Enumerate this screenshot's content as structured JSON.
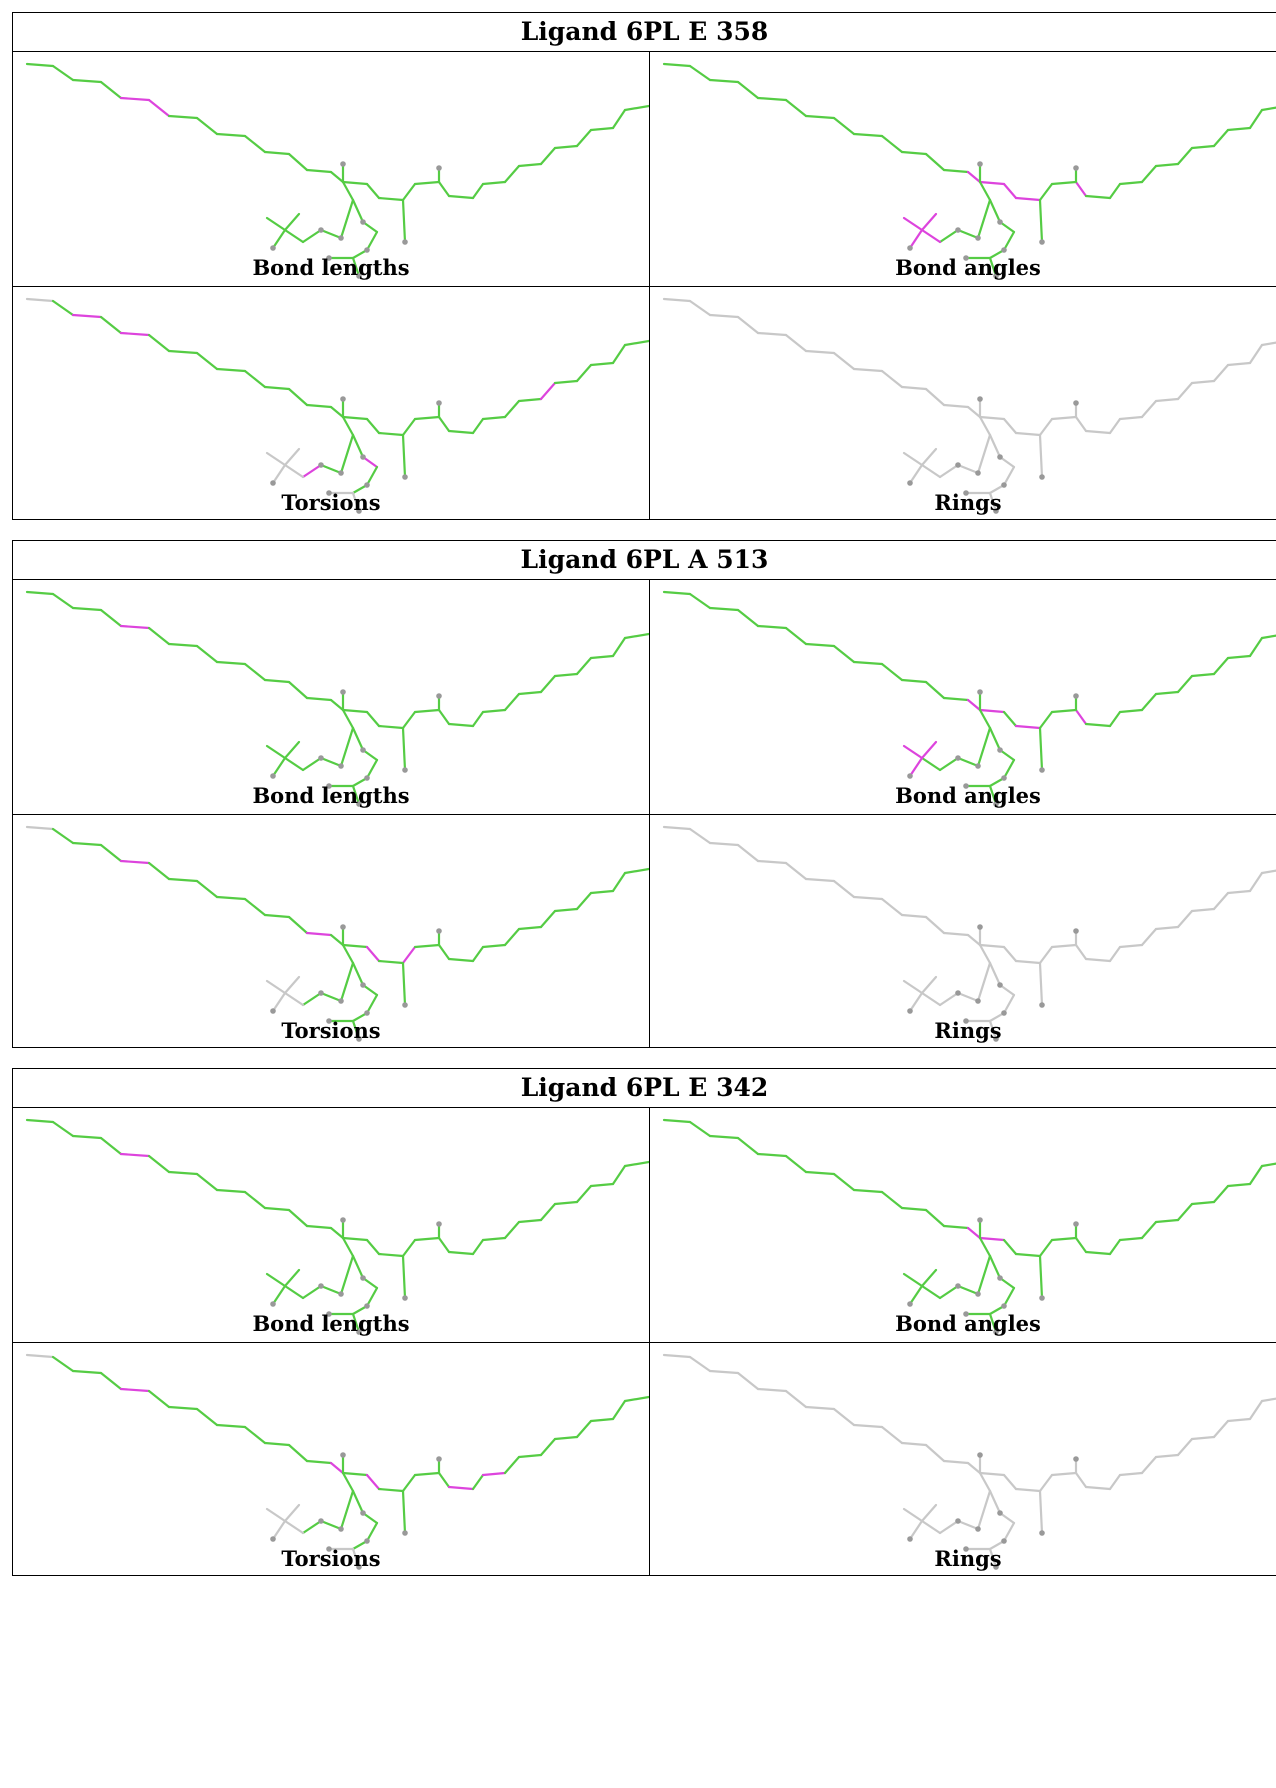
{
  "colors": {
    "ok": "#55cc44",
    "outlier": "#dd44dd",
    "neutral": "#c8c8c8",
    "atom": "#999999"
  },
  "ligands": [
    {
      "title": "Ligand 6PL E 358",
      "panels": [
        {
          "label": "Bond lengths",
          "mode": "color",
          "pink": [
            [
              4,
              5
            ],
            [
              5,
              6
            ]
          ],
          "gray": []
        },
        {
          "label": "Bond angles",
          "mode": "color",
          "pink": [
            [
              13,
              14
            ],
            [
              14,
              15
            ],
            [
              16,
              17
            ],
            [
              15,
              16
            ],
            [
              19,
              20
            ],
            [
              40,
              41
            ],
            [
              40,
              42
            ],
            [
              40,
              43
            ],
            [
              39,
              40
            ]
          ],
          "gray": []
        },
        {
          "label": "Torsions",
          "mode": "color",
          "pink": [
            [
              2,
              3
            ],
            [
              4,
              5
            ],
            [
              25,
              26
            ],
            [
              39,
              38
            ],
            [
              33,
              34
            ]
          ],
          "gray": [
            [
              0,
              1
            ],
            [
              40,
              41
            ],
            [
              40,
              42
            ],
            [
              40,
              43
            ],
            [
              39,
              40
            ],
            [
              36,
              44
            ],
            [
              36,
              45
            ]
          ]
        },
        {
          "label": "Rings",
          "mode": "gray",
          "pink": [],
          "gray": []
        }
      ]
    },
    {
      "title": "Ligand 6PL A 513",
      "panels": [
        {
          "label": "Bond lengths",
          "mode": "color",
          "pink": [
            [
              4,
              5
            ]
          ],
          "gray": []
        },
        {
          "label": "Bond angles",
          "mode": "color",
          "pink": [
            [
              13,
              14
            ],
            [
              14,
              15
            ],
            [
              16,
              17
            ],
            [
              19,
              20
            ],
            [
              40,
              41
            ],
            [
              40,
              42
            ],
            [
              40,
              43
            ]
          ],
          "gray": []
        },
        {
          "label": "Torsions",
          "mode": "color",
          "pink": [
            [
              4,
              5
            ],
            [
              12,
              13
            ],
            [
              15,
              16
            ],
            [
              17,
              18
            ],
            [
              37,
              36
            ]
          ],
          "gray": [
            [
              0,
              1
            ],
            [
              40,
              41
            ],
            [
              40,
              42
            ],
            [
              40,
              43
            ],
            [
              39,
              40
            ]
          ]
        },
        {
          "label": "Rings",
          "mode": "gray",
          "pink": [],
          "gray": []
        }
      ]
    },
    {
      "title": "Ligand 6PL E 342",
      "panels": [
        {
          "label": "Bond lengths",
          "mode": "color",
          "pink": [
            [
              4,
              5
            ]
          ],
          "gray": []
        },
        {
          "label": "Bond angles",
          "mode": "color",
          "pink": [
            [
              13,
              14
            ],
            [
              14,
              15
            ]
          ],
          "gray": []
        },
        {
          "label": "Torsions",
          "mode": "color",
          "pink": [
            [
              4,
              5
            ],
            [
              13,
              14
            ],
            [
              15,
              16
            ],
            [
              20,
              21
            ],
            [
              22,
              23
            ],
            [
              37,
              36
            ]
          ],
          "gray": [
            [
              0,
              1
            ],
            [
              40,
              41
            ],
            [
              40,
              42
            ],
            [
              40,
              43
            ],
            [
              39,
              40
            ],
            [
              36,
              44
            ],
            [
              36,
              45
            ]
          ]
        },
        {
          "label": "Rings",
          "mode": "gray",
          "pink": [],
          "gray": []
        }
      ]
    }
  ]
}
